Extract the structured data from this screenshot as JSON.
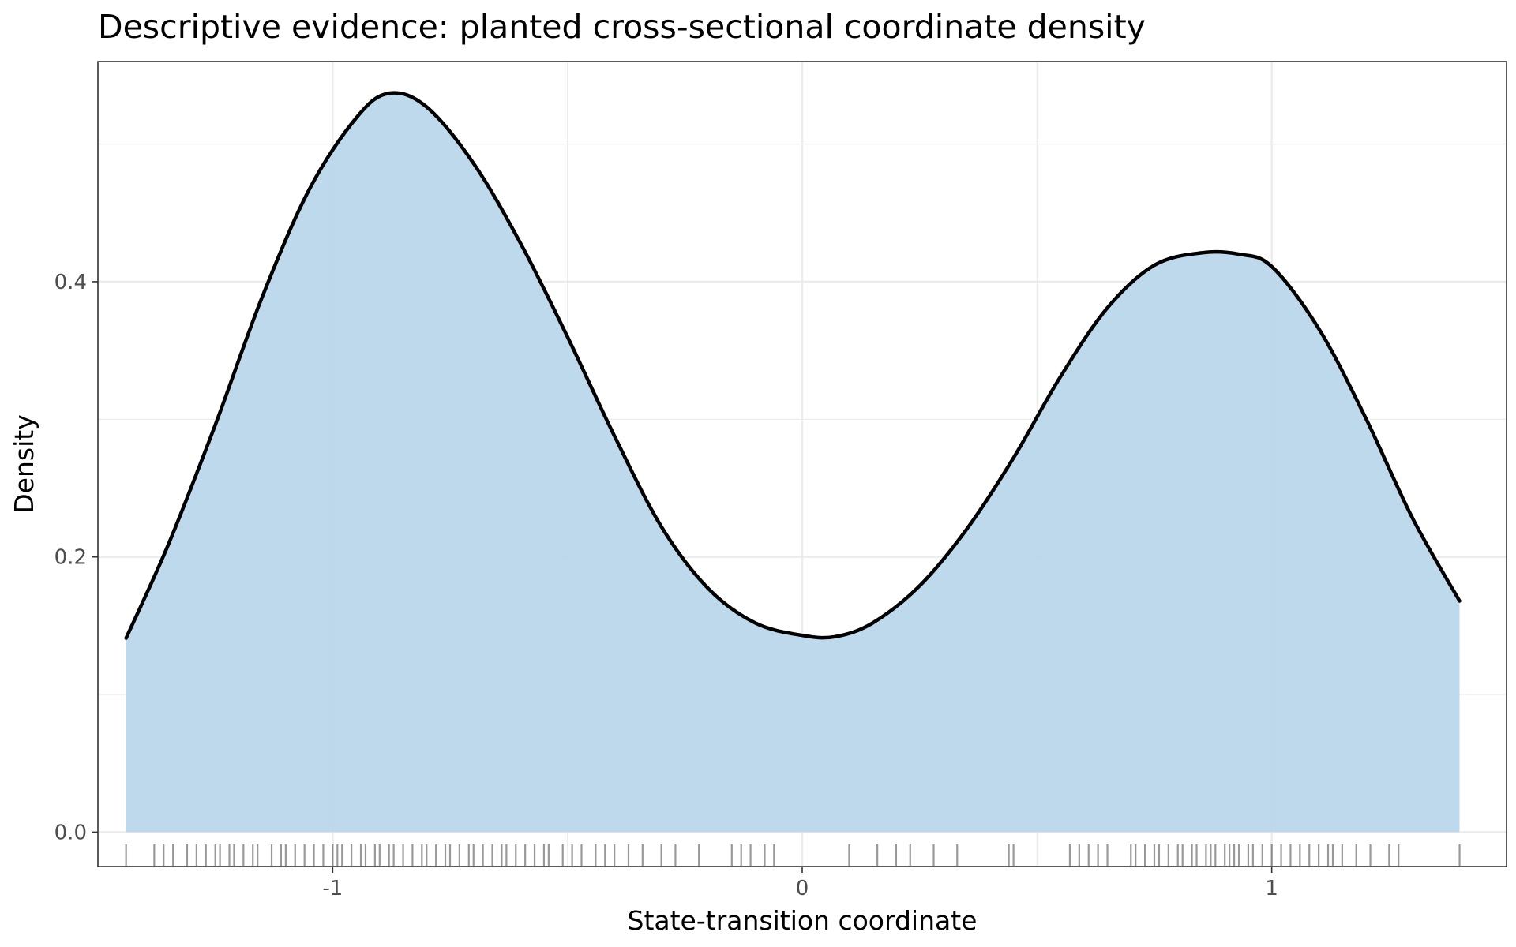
{
  "chart_data": {
    "type": "area",
    "title": "Descriptive evidence: planted cross-sectional coordinate density",
    "xlabel": "State-transition coordinate",
    "ylabel": "Density",
    "xlim": [
      -1.5,
      1.5
    ],
    "ylim": [
      -0.025,
      0.56
    ],
    "x_ticks": [
      -1,
      0,
      1
    ],
    "x_tick_labels": [
      "-1",
      "0",
      "1"
    ],
    "y_ticks": [
      0.0,
      0.2,
      0.4
    ],
    "y_tick_labels": [
      "0.0",
      "0.2",
      "0.4"
    ],
    "grid": true,
    "legend": "none",
    "colors": {
      "fill": "#bad7ea",
      "line": "#000000",
      "rug": "#000000",
      "grid": "#ebebeb",
      "frame": "#333333"
    },
    "series": [
      {
        "x": [
          -1.44,
          -1.35,
          -1.25,
          -1.15,
          -1.05,
          -0.95,
          -0.88,
          -0.8,
          -0.7,
          -0.6,
          -0.5,
          -0.4,
          -0.3,
          -0.2,
          -0.1,
          0.0,
          0.07,
          0.15,
          0.25,
          0.35,
          0.45,
          0.55,
          0.65,
          0.75,
          0.85,
          0.93,
          1.0,
          1.1,
          1.2,
          1.3,
          1.4
        ],
        "y": [
          0.141,
          0.209,
          0.296,
          0.389,
          0.467,
          0.519,
          0.537,
          0.527,
          0.486,
          0.428,
          0.36,
          0.288,
          0.222,
          0.177,
          0.152,
          0.143,
          0.142,
          0.152,
          0.179,
          0.22,
          0.272,
          0.331,
          0.381,
          0.412,
          0.421,
          0.42,
          0.411,
          0.366,
          0.301,
          0.228,
          0.168
        ]
      }
    ],
    "rug": [
      -1.44,
      -1.38,
      -1.36,
      -1.34,
      -1.31,
      -1.29,
      -1.27,
      -1.25,
      -1.24,
      -1.22,
      -1.21,
      -1.19,
      -1.17,
      -1.16,
      -1.13,
      -1.11,
      -1.1,
      -1.08,
      -1.06,
      -1.04,
      -1.02,
      -1.0,
      -0.99,
      -0.98,
      -0.96,
      -0.94,
      -0.93,
      -0.91,
      -0.9,
      -0.88,
      -0.87,
      -0.85,
      -0.83,
      -0.81,
      -0.8,
      -0.78,
      -0.76,
      -0.75,
      -0.73,
      -0.71,
      -0.7,
      -0.68,
      -0.66,
      -0.64,
      -0.63,
      -0.61,
      -0.59,
      -0.57,
      -0.55,
      -0.54,
      -0.51,
      -0.49,
      -0.47,
      -0.44,
      -0.42,
      -0.4,
      -0.37,
      -0.34,
      -0.3,
      -0.27,
      -0.22,
      -0.15,
      -0.13,
      -0.11,
      -0.08,
      -0.06,
      0.1,
      0.16,
      0.2,
      0.23,
      0.28,
      0.33,
      0.44,
      0.45,
      0.57,
      0.59,
      0.61,
      0.63,
      0.65,
      0.7,
      0.71,
      0.73,
      0.75,
      0.76,
      0.78,
      0.8,
      0.81,
      0.83,
      0.84,
      0.86,
      0.87,
      0.88,
      0.9,
      0.91,
      0.92,
      0.93,
      0.95,
      0.96,
      0.98,
      1.0,
      1.02,
      1.04,
      1.06,
      1.08,
      1.1,
      1.12,
      1.13,
      1.15,
      1.18,
      1.21,
      1.25,
      1.27,
      1.4
    ]
  }
}
